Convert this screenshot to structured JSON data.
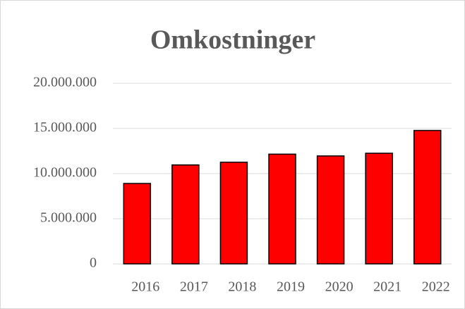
{
  "chart_data": {
    "type": "bar",
    "title": "Omkostninger",
    "categories": [
      "2016",
      "2017",
      "2018",
      "2019",
      "2020",
      "2021",
      "2022"
    ],
    "values": [
      8900000,
      10950000,
      11250000,
      12150000,
      11950000,
      12250000,
      14770000
    ],
    "color": "#ff0000",
    "ylim": [
      0,
      20000000
    ],
    "yticks": [
      0,
      {
        "value": 5000000,
        "label": "5.000.000"
      },
      {
        "value": 10000000,
        "label": "10.000.000"
      },
      {
        "value": 15000000,
        "label": "15.000.000"
      },
      {
        "value": 20000000,
        "label": "20.000.000"
      }
    ],
    "grid": true
  }
}
